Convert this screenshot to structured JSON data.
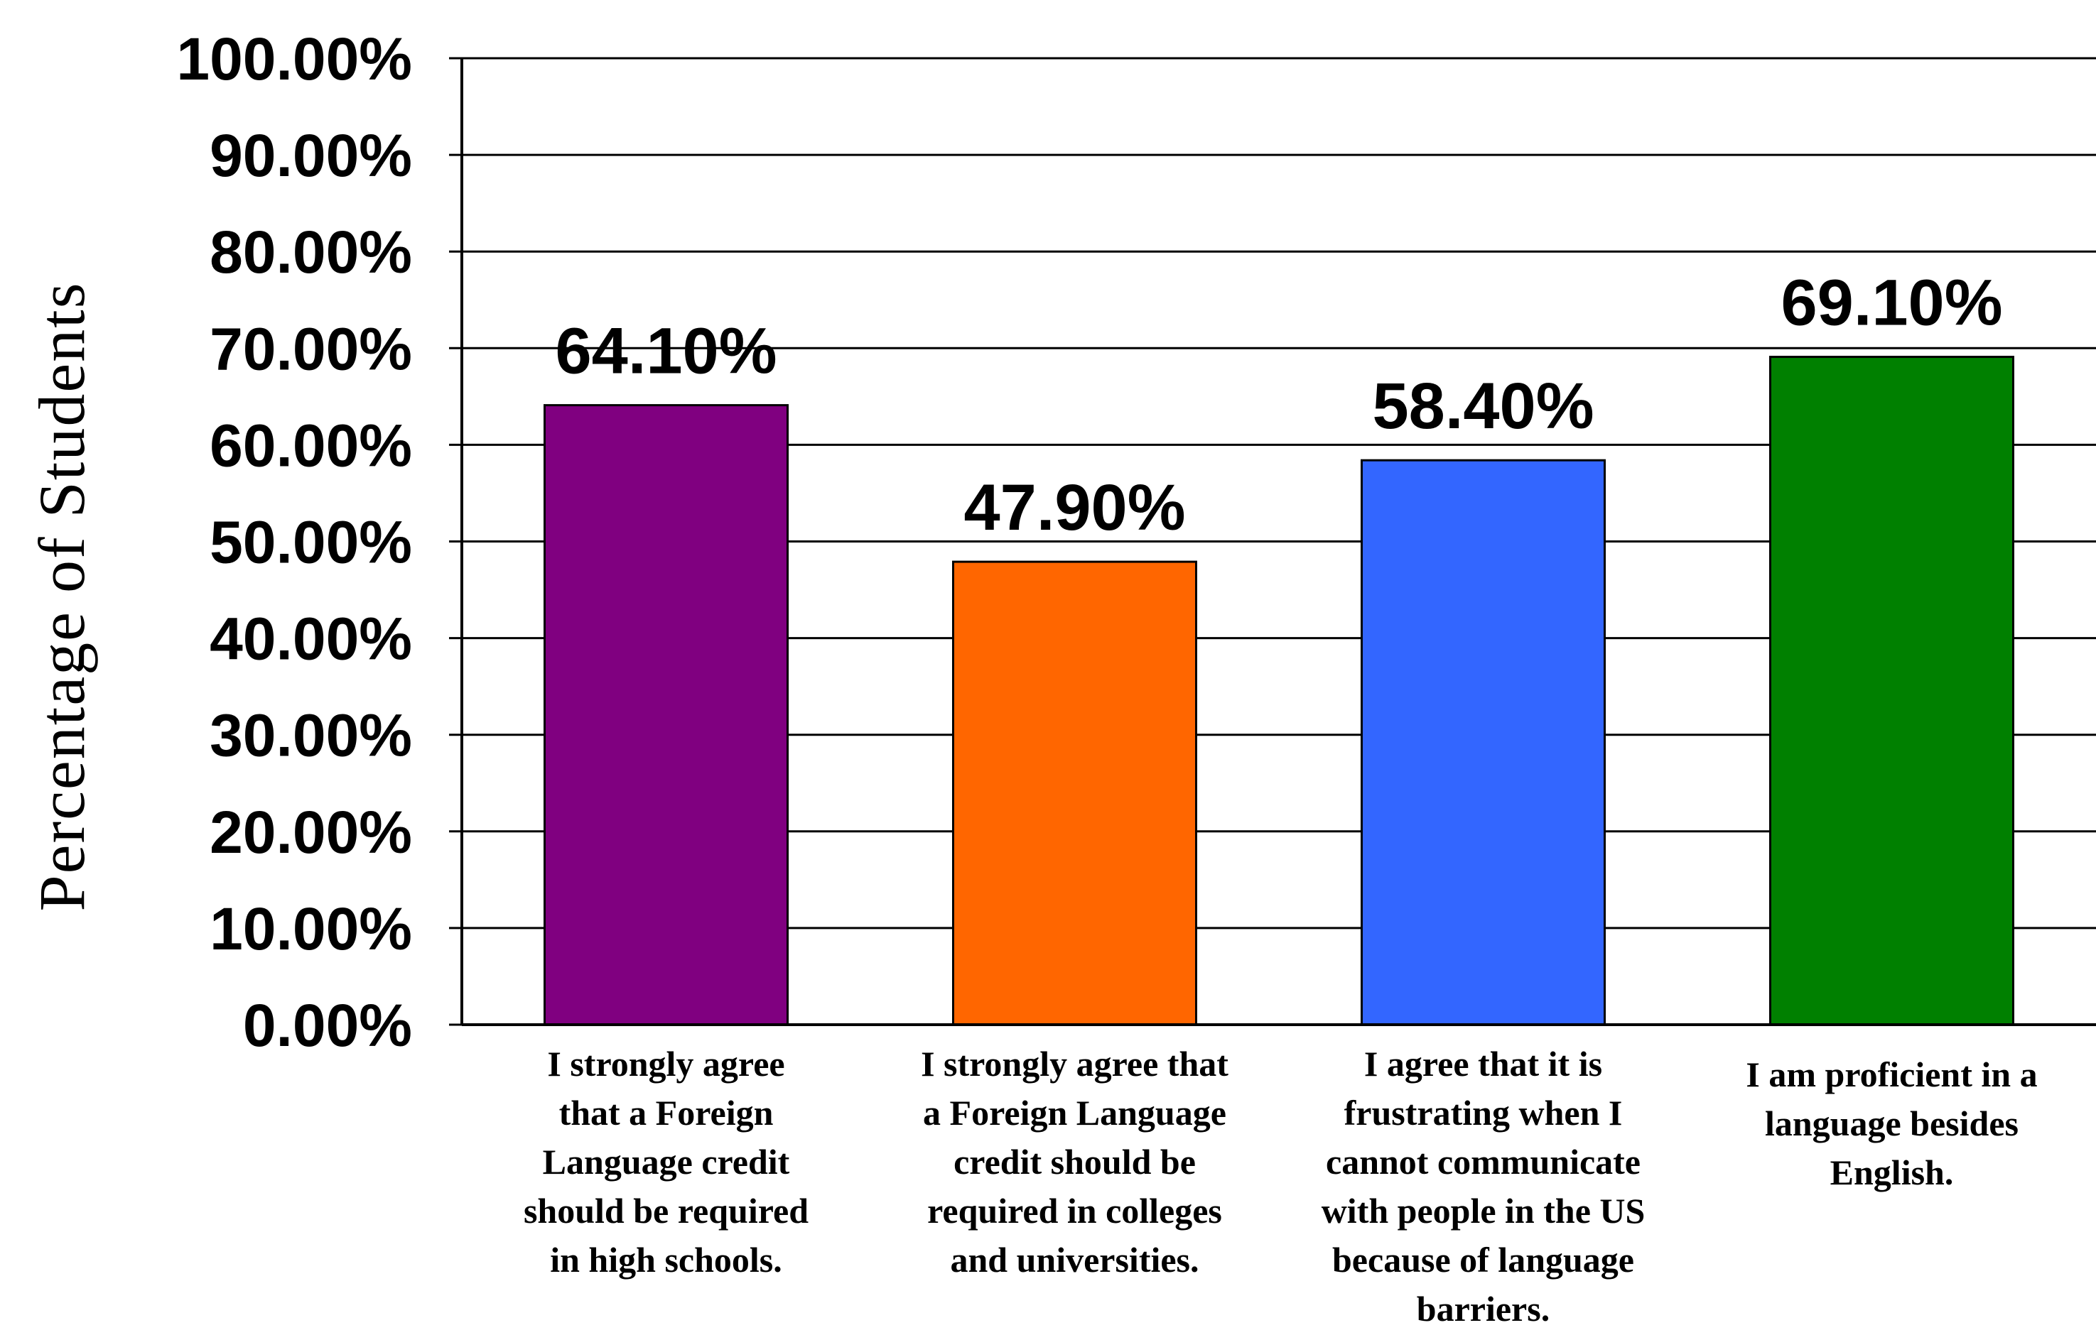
{
  "chart_data": {
    "type": "bar",
    "ylabel": "Percentage of Students",
    "xlabel": "",
    "ylim": [
      0,
      100
    ],
    "yticks": [
      "0.00%",
      "10.00%",
      "20.00%",
      "30.00%",
      "40.00%",
      "50.00%",
      "60.00%",
      "70.00%",
      "80.00%",
      "90.00%",
      "100.00%"
    ],
    "grid": true,
    "legend": "none",
    "categories": [
      [
        "I strongly agree",
        "that a Foreign",
        "Language credit",
        "should be required",
        "in high schools."
      ],
      [
        "I strongly agree that",
        "a Foreign Language",
        "credit should be",
        "required in colleges",
        "and universities."
      ],
      [
        "I agree that it is",
        "frustrating when I",
        "cannot communicate",
        "with people in the US",
        "because of language",
        "barriers."
      ],
      [
        "I am proficient in a",
        "language besides",
        "English."
      ]
    ],
    "values": [
      64.1,
      47.9,
      58.4,
      69.1
    ],
    "data_labels": [
      "64.10%",
      "47.90%",
      "58.40%",
      "69.10%"
    ],
    "colors": [
      "#800080",
      "#FF6600",
      "#3366FF",
      "#008000"
    ]
  }
}
